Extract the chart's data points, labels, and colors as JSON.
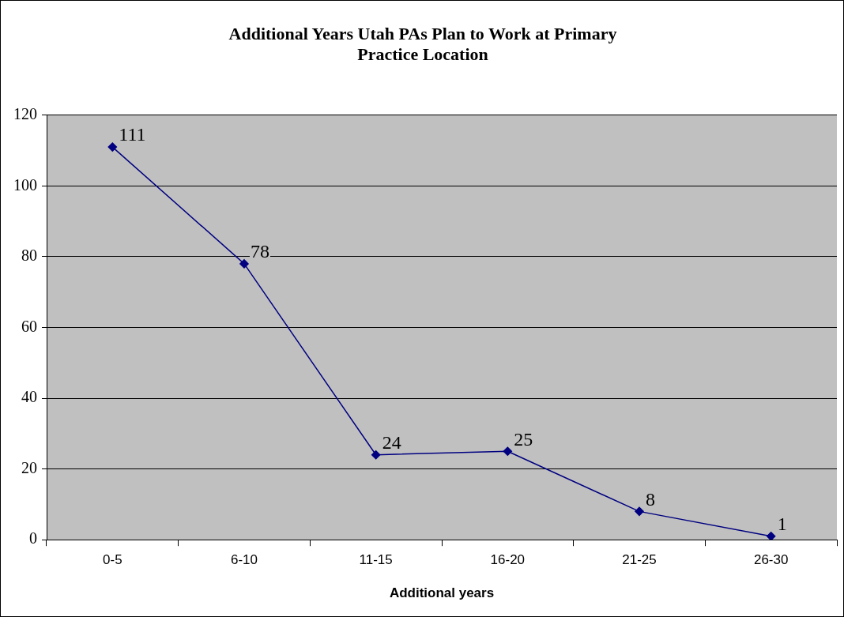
{
  "chart_data": {
    "type": "line",
    "title": "Additional Years Utah PAs Plan to Work at Primary Practice Location",
    "xlabel": "Additional years",
    "categories": [
      "0-5",
      "6-10",
      "11-15",
      "16-20",
      "21-25",
      "26-30"
    ],
    "series": [
      {
        "color": "#000080",
        "values": [
          111,
          78,
          24,
          25,
          8,
          1
        ]
      }
    ],
    "ylim": [
      0,
      120
    ],
    "yticks": [
      0,
      20,
      40,
      60,
      80,
      100,
      120
    ],
    "grid": "y",
    "legend": false,
    "marker": "diamond",
    "line_style": "solid",
    "data_labels": true
  }
}
